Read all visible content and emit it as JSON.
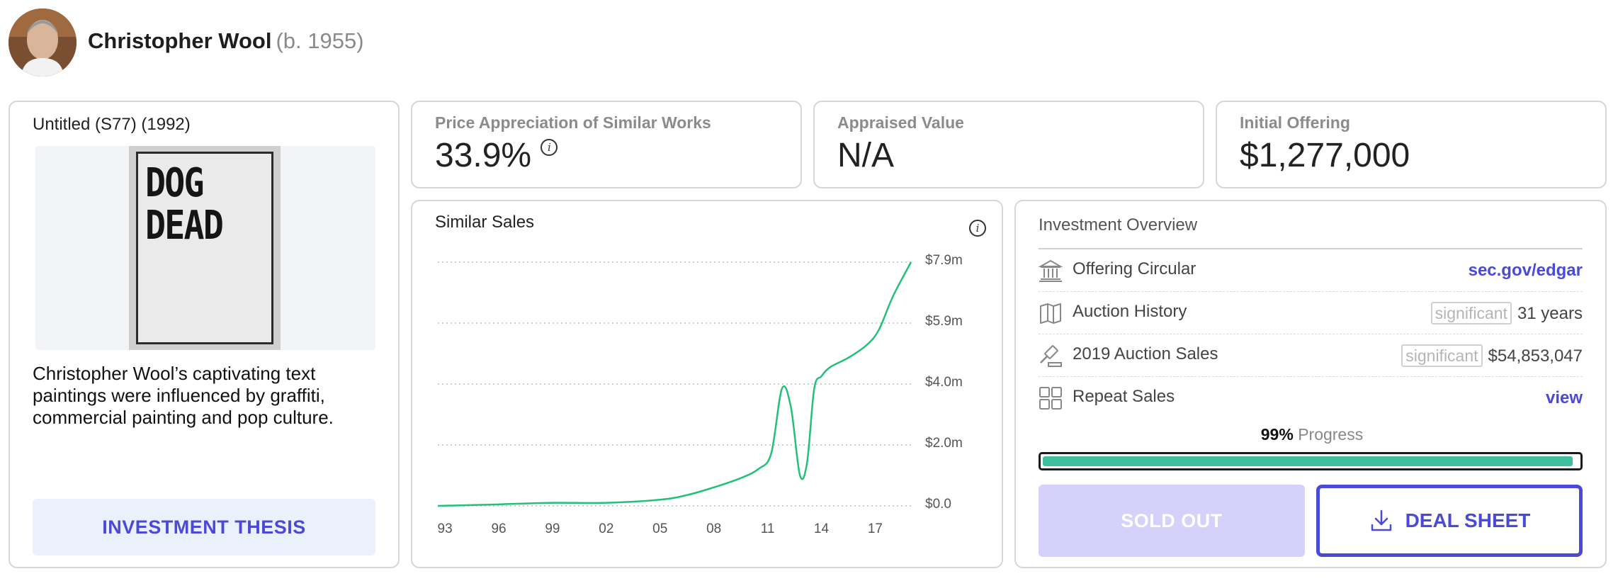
{
  "artist": {
    "name": "Christopher Wool",
    "born": "(b. 1955)"
  },
  "artwork": {
    "title": "Untitled (S77) (1992)",
    "painting_text_line1": "DOG",
    "painting_text_line2": "DEAD",
    "description": "Christopher Wool’s captivating text paintings were influenced by graffiti, commercial painting and pop culture.",
    "thesis_button": "INVESTMENT THESIS"
  },
  "stats": {
    "appreciation": {
      "label": "Price Appreciation of Similar Works",
      "value": "33.9%"
    },
    "appraised": {
      "label": "Appraised Value",
      "value": "N/A"
    },
    "offering": {
      "label": "Initial Offering",
      "value": "$1,277,000"
    }
  },
  "chart": {
    "title": "Similar Sales",
    "y_ticks": [
      "$7.9m",
      "$5.9m",
      "$4.0m",
      "$2.0m",
      "$0.0"
    ],
    "x_ticks": [
      "93",
      "96",
      "99",
      "02",
      "05",
      "08",
      "11",
      "14",
      "17"
    ]
  },
  "chart_data": {
    "type": "line",
    "title": "Similar Sales",
    "xlabel": "",
    "ylabel": "",
    "ylim": [
      0,
      7.9
    ],
    "xlim": [
      1992.6,
      2019.0
    ],
    "grid": true,
    "x": [
      1992.6,
      1996,
      1999,
      2002,
      2005,
      2006.5,
      2008,
      2009.5,
      2010.5,
      2011.2,
      2011.8,
      2012.3,
      2012.8,
      2013.2,
      2013.6,
      2014.0,
      2014.5,
      2015.5,
      2016.5,
      2017.2,
      2018.0,
      2019.0
    ],
    "values": [
      0.0,
      0.05,
      0.1,
      0.1,
      0.2,
      0.35,
      0.6,
      0.9,
      1.2,
      1.7,
      3.8,
      3.2,
      1.0,
      1.4,
      3.8,
      4.2,
      4.5,
      4.8,
      5.2,
      5.7,
      6.8,
      7.9
    ]
  },
  "overview": {
    "title": "Investment Overview",
    "rows": [
      {
        "label": "Offering Circular",
        "link": "sec.gov/edgar"
      },
      {
        "label": "Auction History",
        "badge": "significant",
        "value": "31 years"
      },
      {
        "label": "2019 Auction Sales",
        "badge": "significant",
        "value": "$54,853,047"
      },
      {
        "label": "Repeat Sales",
        "link": "view"
      }
    ],
    "progress": {
      "percent_text": "99%",
      "label": "Progress",
      "fraction": 0.99
    },
    "sold_out_button": "SOLD OUT",
    "deal_sheet_button": "DEAL SHEET"
  },
  "icons": [
    "info-icon",
    "bank-icon",
    "book-icon",
    "gavel-icon",
    "grid-icon",
    "download-icon"
  ],
  "colors": {
    "accent": "#4a4ad6",
    "chart_line": "#22c07a",
    "progress": "#3fbf9e",
    "sold_out_bg": "#d4d2fa"
  }
}
